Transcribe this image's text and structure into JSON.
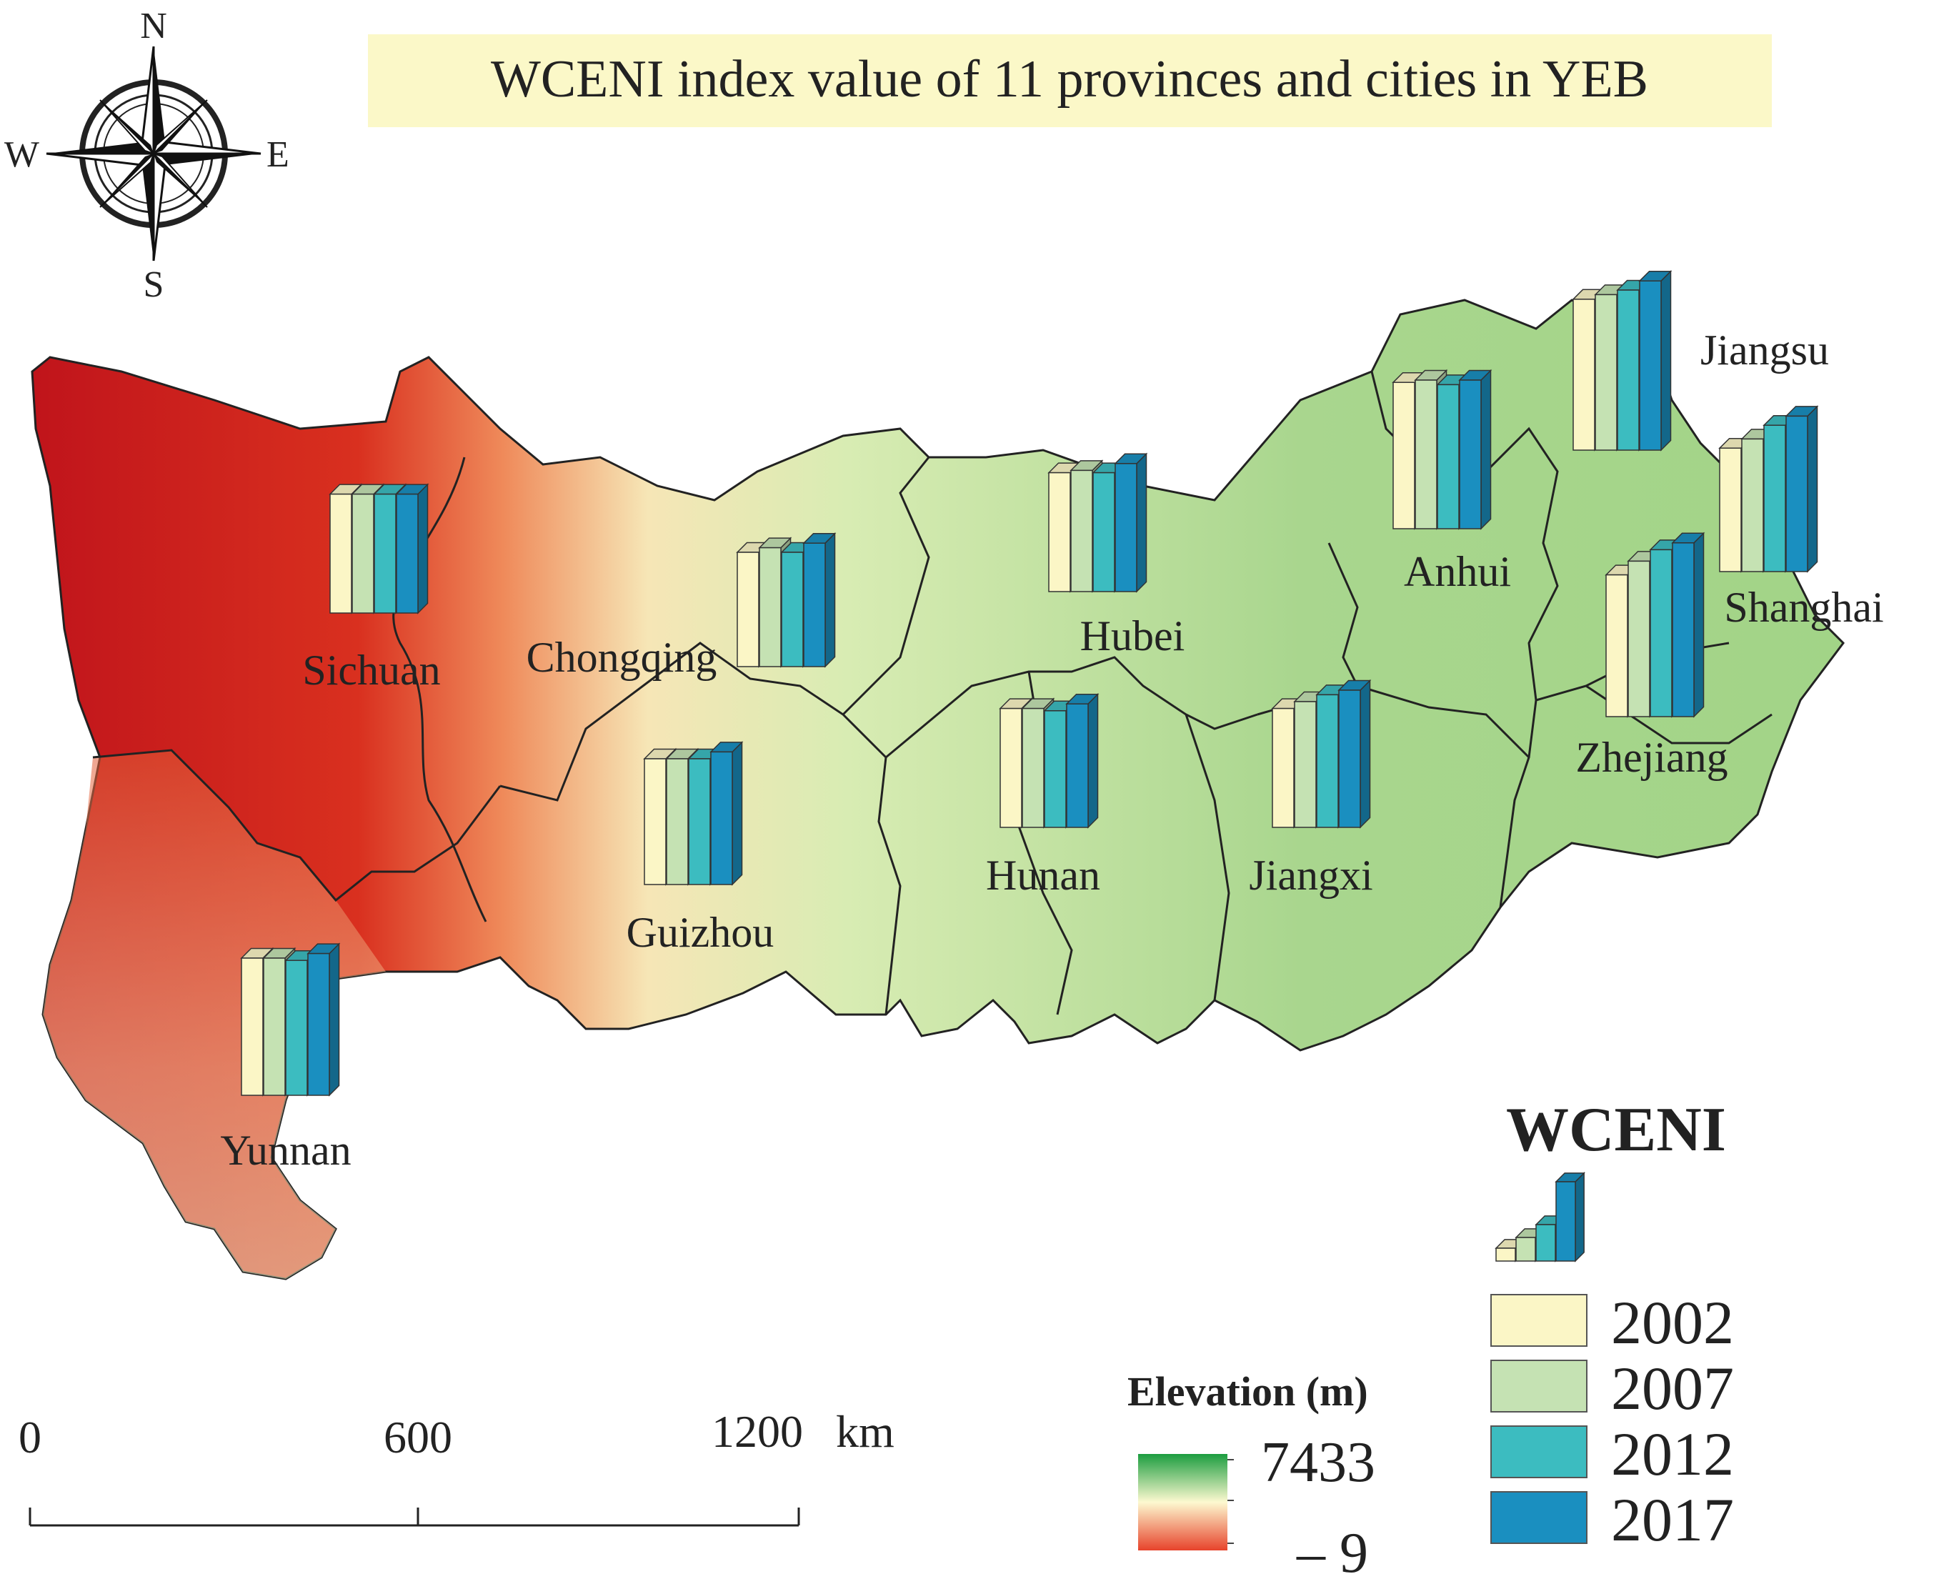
{
  "title": "WCENI index value of 11 provinces and cities in YEB",
  "compass": {
    "n": "N",
    "s": "S",
    "e": "E",
    "w": "W",
    "icon": "compass-rose-icon"
  },
  "provinces": [
    {
      "name": "Sichuan",
      "values": [
        0.52,
        0.52,
        0.52,
        0.52
      ]
    },
    {
      "name": "Chongqing",
      "values": [
        0.5,
        0.52,
        0.5,
        0.54
      ]
    },
    {
      "name": "Hubei",
      "values": [
        0.52,
        0.53,
        0.52,
        0.56
      ]
    },
    {
      "name": "Anhui",
      "values": [
        0.64,
        0.65,
        0.63,
        0.65
      ]
    },
    {
      "name": "Jiangsu",
      "values": [
        0.66,
        0.68,
        0.7,
        0.74
      ]
    },
    {
      "name": "Shanghai",
      "values": [
        0.54,
        0.58,
        0.64,
        0.68
      ]
    },
    {
      "name": "Zhejiang",
      "values": [
        0.62,
        0.68,
        0.73,
        0.76
      ]
    },
    {
      "name": "Hunan",
      "values": [
        0.52,
        0.52,
        0.51,
        0.54
      ]
    },
    {
      "name": "Jiangxi",
      "values": [
        0.52,
        0.55,
        0.58,
        0.6
      ]
    },
    {
      "name": "Guizhou",
      "values": [
        0.55,
        0.55,
        0.55,
        0.58
      ]
    },
    {
      "name": "Yunnan",
      "values": [
        0.6,
        0.6,
        0.59,
        0.62
      ]
    }
  ],
  "chart_data": {
    "type": "bar",
    "title": "WCENI index value of 11 provinces and cities in YEB",
    "categories": [
      "Sichuan",
      "Chongqing",
      "Hubei",
      "Anhui",
      "Jiangsu",
      "Shanghai",
      "Zhejiang",
      "Hunan",
      "Jiangxi",
      "Guizhou",
      "Yunnan"
    ],
    "series": [
      {
        "name": "2002",
        "values": [
          0.52,
          0.5,
          0.52,
          0.64,
          0.66,
          0.54,
          0.62,
          0.52,
          0.52,
          0.55,
          0.6
        ]
      },
      {
        "name": "2007",
        "values": [
          0.52,
          0.52,
          0.53,
          0.65,
          0.68,
          0.58,
          0.68,
          0.52,
          0.55,
          0.55,
          0.6
        ]
      },
      {
        "name": "2012",
        "values": [
          0.52,
          0.5,
          0.52,
          0.63,
          0.7,
          0.64,
          0.73,
          0.51,
          0.58,
          0.55,
          0.59
        ]
      },
      {
        "name": "2017",
        "values": [
          0.52,
          0.54,
          0.56,
          0.65,
          0.74,
          0.68,
          0.76,
          0.54,
          0.6,
          0.58,
          0.62
        ]
      }
    ],
    "ylim": [
      0,
      1
    ]
  },
  "legend": {
    "title": "WCENI",
    "years": [
      "2002",
      "2007",
      "2012",
      "2017"
    ],
    "colors": [
      "#fbf6c6",
      "#c5e2b3",
      "#3cbcc0",
      "#1a8fc0"
    ]
  },
  "elevation": {
    "title": "Elevation (m)",
    "max": "7433",
    "min": "– 9",
    "colors": [
      "#1c9d40",
      "#fdf9d0",
      "#e7432b"
    ]
  },
  "scalebar": {
    "ticks": [
      "0",
      "600",
      "1200"
    ],
    "unit": "km"
  }
}
